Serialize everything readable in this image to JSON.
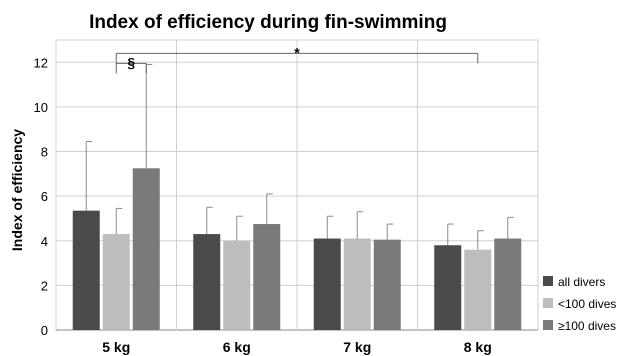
{
  "chart_data": {
    "type": "bar",
    "title": "Index of efficiency during fin-swimming",
    "xlabel": "",
    "ylabel": "Index of efficiency",
    "ylim": [
      0,
      13
    ],
    "yticks": [
      0,
      2,
      4,
      6,
      8,
      10,
      12
    ],
    "grid": true,
    "legend_position": "bottom-right",
    "categories": [
      "5 kg",
      "6 kg",
      "7 kg",
      "8 kg"
    ],
    "series": [
      {
        "name": "all divers",
        "color": "#4a4a4a",
        "values": [
          5.35,
          4.3,
          4.1,
          3.8
        ],
        "error_upper": [
          8.45,
          5.5,
          5.1,
          4.75
        ]
      },
      {
        "name": "<100 dives",
        "color": "#bdbdbd",
        "values": [
          4.3,
          4.0,
          4.1,
          3.6
        ],
        "error_upper": [
          5.45,
          5.1,
          5.3,
          4.45
        ]
      },
      {
        "name": "≥100 dives",
        "color": "#7a7a7a",
        "values": [
          7.25,
          4.75,
          4.05,
          4.1
        ],
        "error_upper": [
          11.9,
          6.1,
          4.75,
          5.05
        ]
      }
    ],
    "annotations": [
      {
        "text": "§",
        "between": [
          "5 kg:<100 dives",
          "5 kg:≥100 dives"
        ],
        "y": 11.95
      },
      {
        "text": "*",
        "between": [
          "5 kg",
          "8 kg"
        ],
        "y": 12.4
      }
    ]
  }
}
